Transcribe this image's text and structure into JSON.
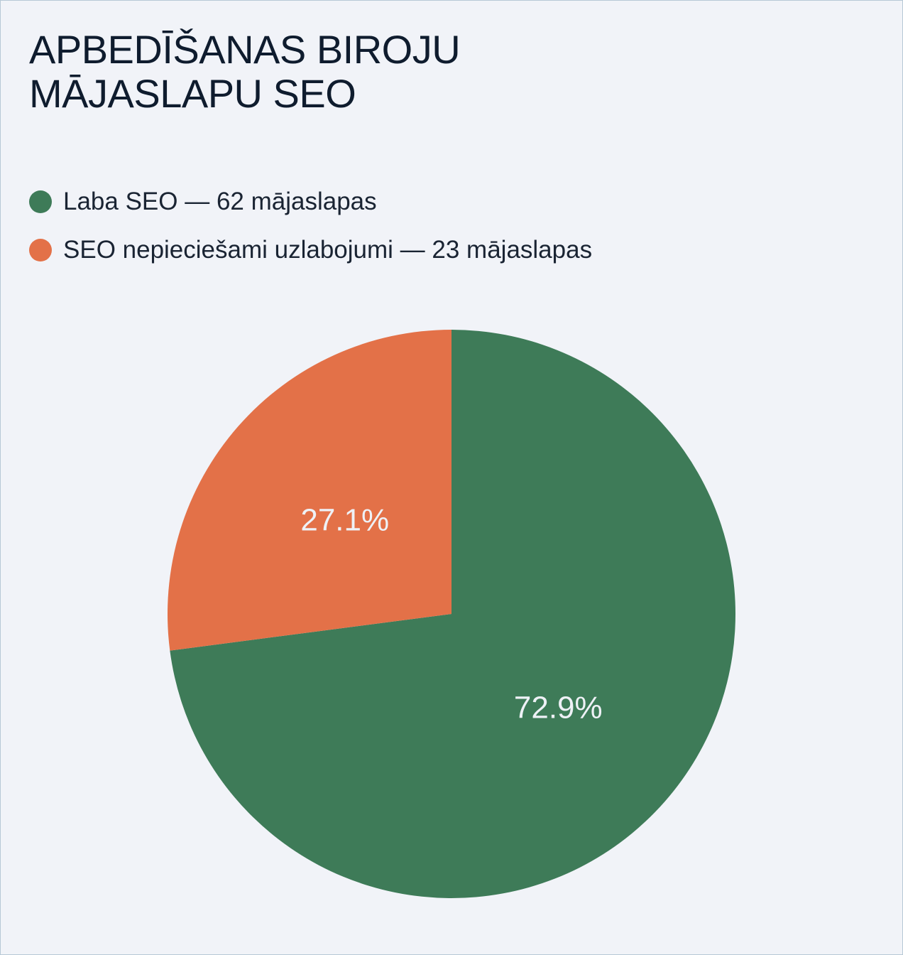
{
  "chart_data": {
    "type": "pie",
    "title_lines": [
      "APBEDĪŠANAS BIROJU",
      "MĀJASLAPU SEO"
    ],
    "legend_placement": "top-left",
    "series": [
      {
        "legend": "Laba SEO — 62 mājaslapas",
        "value": 62,
        "percent_label": "72.9%",
        "color": "#3e7b58"
      },
      {
        "legend": "SEO nepieciešami uzlabojumi — 23 mājaslapas",
        "value": 23,
        "percent_label": "27.1%",
        "color": "#e37148"
      }
    ]
  }
}
